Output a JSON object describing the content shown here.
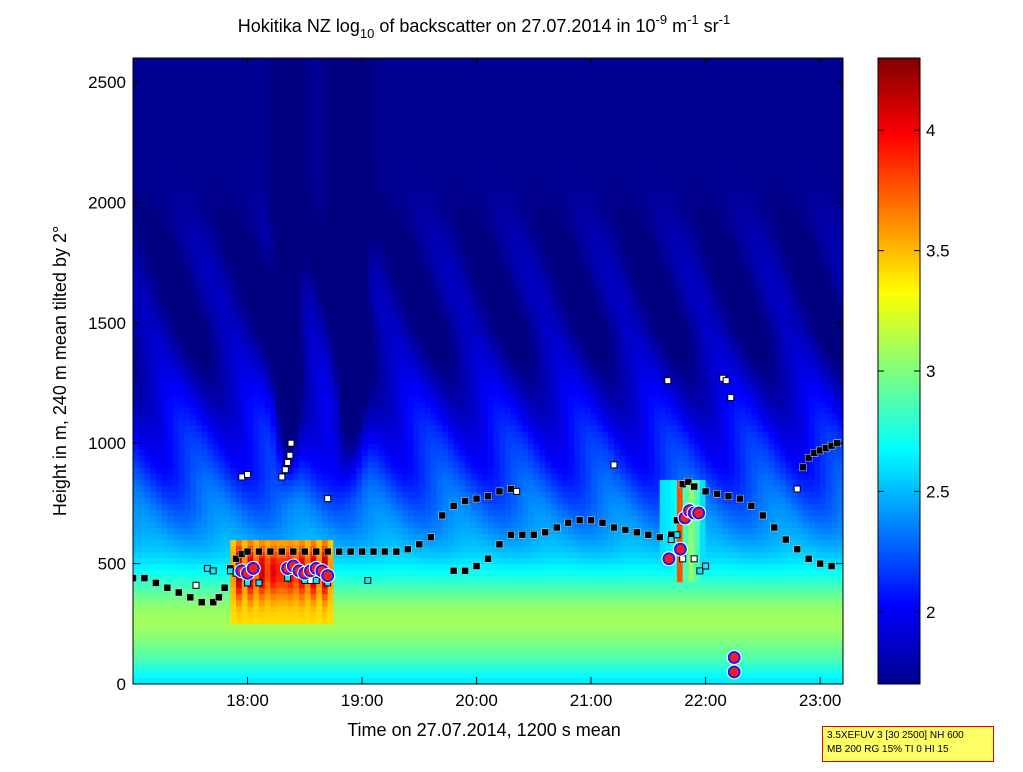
{
  "chart_data": {
    "type": "heatmap",
    "title_parts": {
      "pre": "Hokitika NZ log",
      "sub": "10",
      "mid": " of backscatter on 27.07.2014 in 10",
      "sup1": "-9",
      "unit1": " m",
      "sup2": "-1",
      "unit2": " sr",
      "sup3": "-1"
    },
    "xlabel": "Time on 27.07.2014, 1200 s mean",
    "ylabel": "Height in m, 240 m mean tilted by 2°",
    "x_ticks": [
      "18:00",
      "19:00",
      "20:00",
      "21:00",
      "22:00",
      "23:00"
    ],
    "x_tick_values": [
      18,
      19,
      20,
      21,
      22,
      23
    ],
    "xlim": [
      17.0,
      23.2
    ],
    "y_ticks": [
      "0",
      "500",
      "1000",
      "1500",
      "2000",
      "2500"
    ],
    "y_tick_values": [
      0,
      500,
      1000,
      1500,
      2000,
      2500
    ],
    "ylim": [
      0,
      2600
    ],
    "colorbar": {
      "ticks": [
        "2",
        "2.5",
        "3",
        "3.5",
        "4"
      ],
      "tick_values": [
        2,
        2.5,
        3,
        3.5,
        4
      ],
      "range": [
        1.7,
        4.3
      ],
      "colormap": "jet"
    },
    "field": {
      "low_layer_top_m": 950,
      "aerosol_top_m": 1550,
      "clear_slot_times": [
        18.35,
        18.9
      ],
      "dense_layer": {
        "x": [
          17.85,
          18.75
        ],
        "y": [
          260,
          590
        ]
      },
      "dense_spike": {
        "x": [
          21.6,
          22.0
        ],
        "y": [
          430,
          860
        ]
      }
    },
    "series": [
      {
        "marker": "black-square",
        "x": [
          17.0,
          17.1,
          17.2,
          17.3,
          17.4,
          17.5,
          17.6,
          17.7,
          17.75,
          17.8,
          17.85,
          17.9,
          17.95,
          18.0,
          18.1,
          18.2,
          18.3,
          18.4,
          18.5,
          18.6,
          18.7,
          18.8,
          18.9,
          19.0,
          19.1,
          19.2,
          19.3,
          19.4,
          19.5,
          19.6,
          19.7,
          19.8,
          19.9,
          20.0,
          20.1,
          20.2,
          20.3
        ],
        "y": [
          440,
          440,
          420,
          400,
          380,
          360,
          340,
          340,
          360,
          400,
          480,
          520,
          540,
          550,
          550,
          550,
          550,
          550,
          550,
          550,
          550,
          550,
          550,
          550,
          550,
          550,
          550,
          560,
          580,
          610,
          700,
          740,
          760,
          770,
          780,
          800,
          810
        ]
      },
      {
        "marker": "black-square",
        "x": [
          19.8,
          19.9,
          20.0,
          20.1,
          20.2,
          20.3,
          20.4,
          20.5,
          20.6,
          20.7,
          20.8,
          20.9,
          21.0,
          21.1,
          21.2,
          21.3,
          21.4,
          21.5,
          21.6,
          21.7,
          21.75,
          21.8,
          21.85,
          21.9,
          22.0,
          22.1,
          22.2,
          22.3,
          22.4,
          22.5,
          22.6,
          22.7,
          22.8,
          22.9,
          23.0,
          23.1
        ],
        "y": [
          470,
          470,
          490,
          520,
          580,
          620,
          620,
          620,
          630,
          650,
          670,
          680,
          680,
          670,
          650,
          640,
          630,
          620,
          610,
          620,
          680,
          830,
          840,
          820,
          800,
          790,
          780,
          770,
          740,
          700,
          650,
          600,
          560,
          520,
          500,
          490
        ]
      },
      {
        "marker": "black-square",
        "x": [
          22.85,
          22.9,
          22.95,
          23.0,
          23.05,
          23.1,
          23.15
        ],
        "y": [
          900,
          940,
          960,
          970,
          980,
          990,
          1000
        ]
      },
      {
        "marker": "white-square",
        "x": [
          17.55,
          17.95,
          18.0,
          18.3,
          18.33,
          18.35,
          18.37,
          18.38,
          18.55,
          18.7,
          20.35,
          21.2,
          21.67,
          21.8,
          21.9,
          22.15,
          22.18,
          22.22,
          22.8
        ],
        "y": [
          410,
          860,
          870,
          860,
          890,
          920,
          950,
          1000,
          430,
          770,
          800,
          910,
          1260,
          520,
          520,
          1270,
          1260,
          1190,
          810
        ]
      },
      {
        "marker": "cyan-square",
        "x": [
          17.65,
          17.7,
          17.85,
          17.9,
          18.0,
          18.1,
          18.35,
          18.5,
          18.6,
          18.7,
          19.05,
          21.7,
          21.75,
          21.95,
          22.0
        ],
        "y": [
          480,
          470,
          470,
          460,
          420,
          420,
          440,
          430,
          430,
          420,
          430,
          600,
          620,
          470,
          490
        ]
      },
      {
        "marker": "red-dot",
        "x": [
          17.95,
          18.0,
          18.05,
          18.35,
          18.4,
          18.45,
          18.5,
          18.55,
          18.6,
          18.65,
          18.7,
          21.68,
          21.78,
          21.82,
          21.86,
          21.9,
          21.94,
          22.25,
          22.25
        ],
        "y": [
          470,
          460,
          480,
          480,
          490,
          470,
          460,
          470,
          480,
          470,
          450,
          520,
          560,
          690,
          720,
          710,
          710,
          110,
          50
        ]
      }
    ]
  },
  "info_box": {
    "line1": "3.5XEFUV 3 [30 2500] NH 600",
    "line2": "MB 200 RG 15% TI 0 HI 15"
  }
}
